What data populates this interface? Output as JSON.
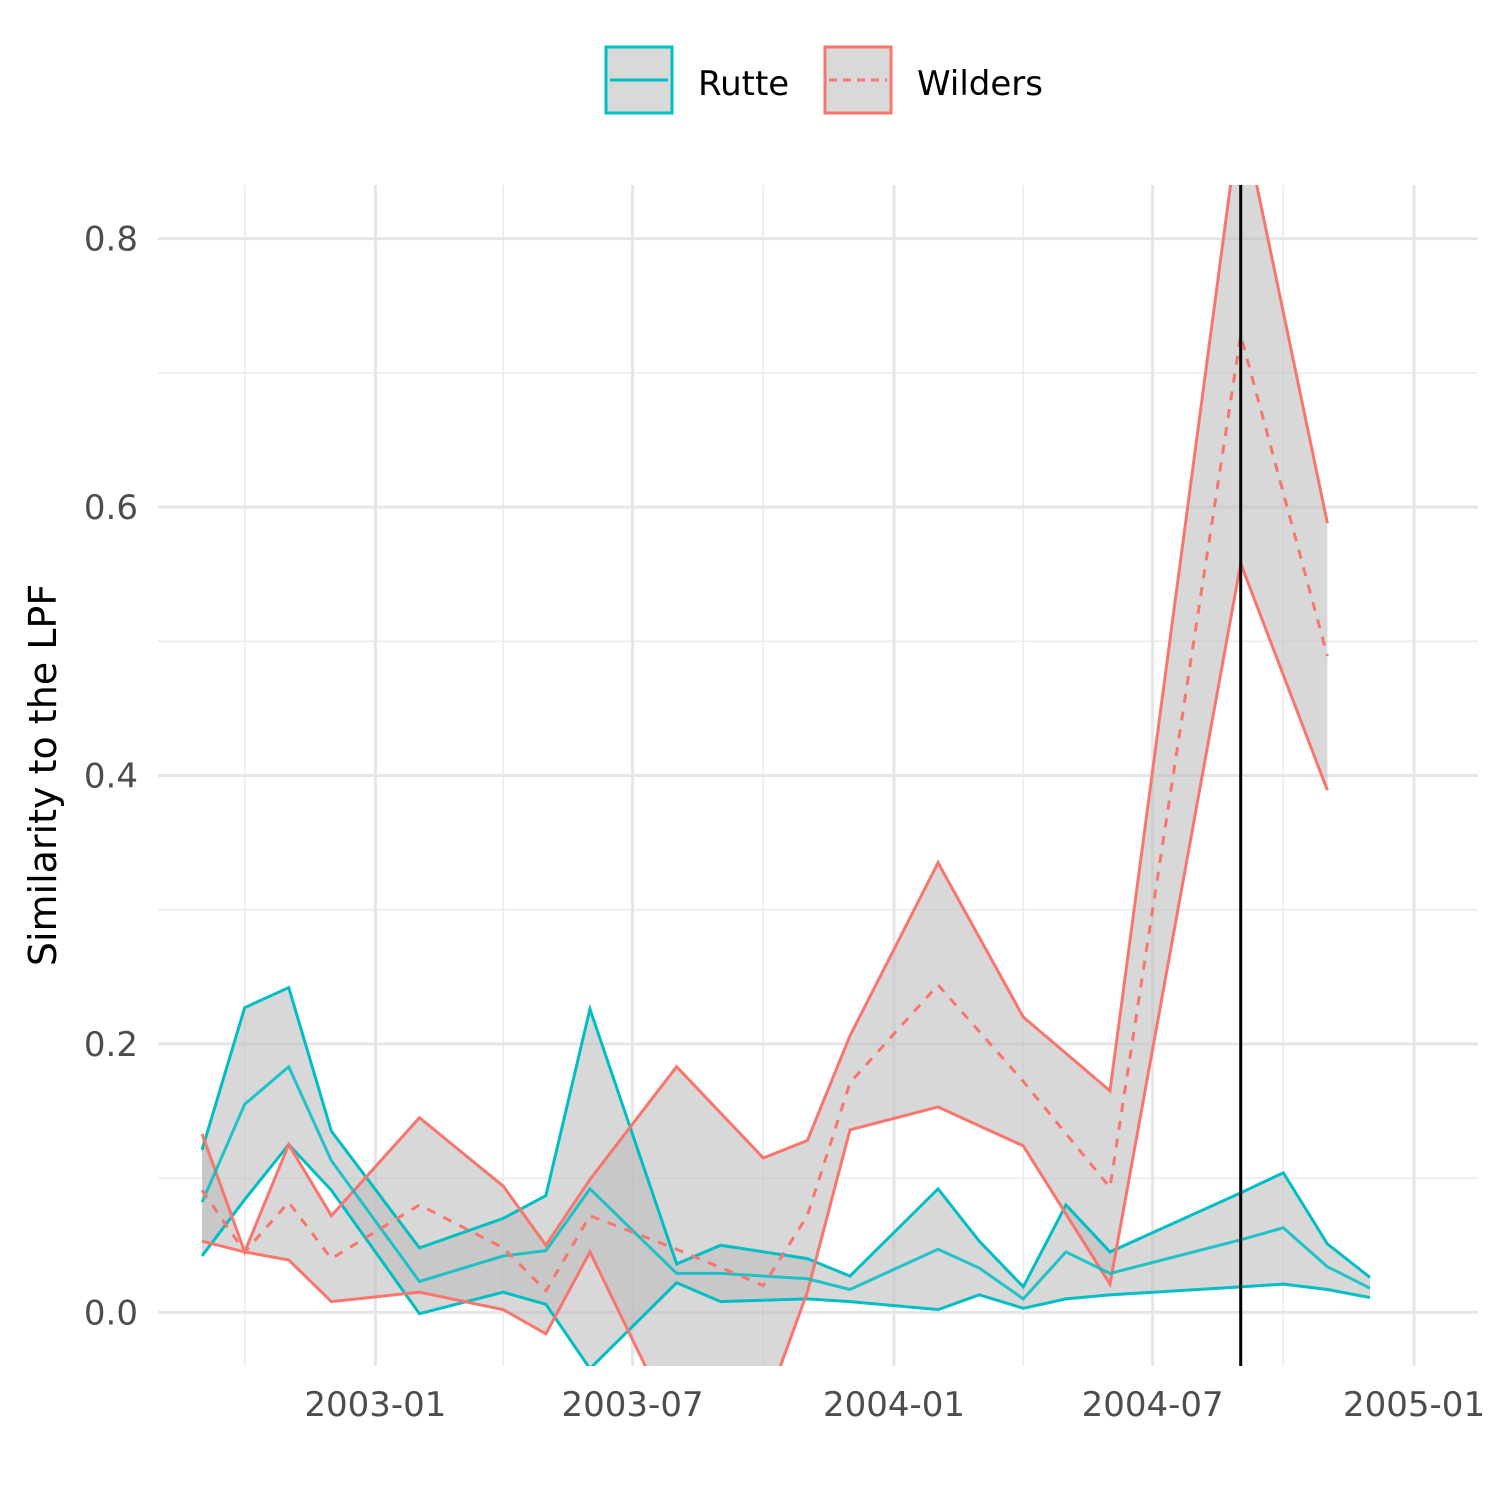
{
  "chart_data": {
    "type": "line",
    "title": "",
    "xlabel": "",
    "ylabel": "Similarity to the LPF",
    "x_tick_labels": [
      "2003-01",
      "2003-07",
      "2004-01",
      "2004-07",
      "2005-01"
    ],
    "y_tick_labels": [
      "0.0",
      "0.2",
      "0.4",
      "0.6",
      "0.8"
    ],
    "x_ticks": [
      "2003-01-01",
      "2003-07-01",
      "2004-01-01",
      "2004-07-01",
      "2005-01-01"
    ],
    "x_minor_ticks": [
      "2002-10-01",
      "2003-04-01",
      "2003-10-01",
      "2004-04-01",
      "2004-10-01"
    ],
    "y_ticks": [
      0,
      0.2,
      0.4,
      0.6,
      0.8
    ],
    "y_minor_ticks": [
      0.1,
      0.3,
      0.5,
      0.7
    ],
    "xlim": [
      "2002-08-01",
      "2005-02-15"
    ],
    "ylim": [
      -0.04,
      0.84
    ],
    "grid": true,
    "legend_position": "top",
    "vline_x": "2004-09-01",
    "colors": {
      "Rutte": "#00BFC4",
      "Wilders": "#F8766D",
      "ribbon": "#BEBEBE",
      "vline": "#000000"
    },
    "series": [
      {
        "name": "Rutte",
        "linetype": "solid",
        "points": [
          {
            "x": "2002-09-01",
            "y": 0.082,
            "lo": 0.042,
            "hi": 0.121
          },
          {
            "x": "2002-10-01",
            "y": 0.155,
            "lo": 0.084,
            "hi": 0.227
          },
          {
            "x": "2002-11-01",
            "y": 0.183,
            "lo": 0.125,
            "hi": 0.242
          },
          {
            "x": "2002-12-01",
            "y": 0.113,
            "lo": 0.091,
            "hi": 0.135
          },
          {
            "x": "2003-02-01",
            "y": 0.023,
            "lo": -0.001,
            "hi": 0.048
          },
          {
            "x": "2003-04-01",
            "y": 0.042,
            "lo": 0.015,
            "hi": 0.07
          },
          {
            "x": "2003-05-01",
            "y": 0.046,
            "lo": 0.006,
            "hi": 0.087
          },
          {
            "x": "2003-06-01",
            "y": 0.092,
            "lo": -0.042,
            "hi": 0.226
          },
          {
            "x": "2003-08-01",
            "y": 0.029,
            "lo": 0.022,
            "hi": 0.036
          },
          {
            "x": "2003-09-01",
            "y": 0.029,
            "lo": 0.008,
            "hi": 0.05
          },
          {
            "x": "2003-11-01",
            "y": 0.025,
            "lo": 0.01,
            "hi": 0.04
          },
          {
            "x": "2003-12-01",
            "y": 0.017,
            "lo": 0.008,
            "hi": 0.027
          },
          {
            "x": "2004-02-01",
            "y": 0.047,
            "lo": 0.002,
            "hi": 0.092
          },
          {
            "x": "2004-03-01",
            "y": 0.033,
            "lo": 0.013,
            "hi": 0.053
          },
          {
            "x": "2004-04-01",
            "y": 0.01,
            "lo": 0.003,
            "hi": 0.019
          },
          {
            "x": "2004-05-01",
            "y": 0.045,
            "lo": 0.01,
            "hi": 0.08
          },
          {
            "x": "2004-06-01",
            "y": 0.029,
            "lo": 0.013,
            "hi": 0.045
          },
          {
            "x": "2004-09-01",
            "y": 0.054,
            "lo": 0.019,
            "hi": 0.089
          },
          {
            "x": "2004-10-01",
            "y": 0.063,
            "lo": 0.021,
            "hi": 0.104
          },
          {
            "x": "2004-11-01",
            "y": 0.034,
            "lo": 0.017,
            "hi": 0.051
          },
          {
            "x": "2004-12-01",
            "y": 0.018,
            "lo": 0.011,
            "hi": 0.026
          }
        ]
      },
      {
        "name": "Wilders",
        "linetype": "dashed",
        "points": [
          {
            "x": "2002-09-01",
            "y": 0.091,
            "lo": 0.053,
            "hi": 0.133
          },
          {
            "x": "2002-10-01",
            "y": 0.045,
            "lo": 0.045,
            "hi": 0.045
          },
          {
            "x": "2002-11-01",
            "y": 0.082,
            "lo": 0.039,
            "hi": 0.125
          },
          {
            "x": "2002-12-01",
            "y": 0.04,
            "lo": 0.008,
            "hi": 0.072
          },
          {
            "x": "2003-02-01",
            "y": 0.08,
            "lo": 0.015,
            "hi": 0.145
          },
          {
            "x": "2003-04-01",
            "y": 0.048,
            "lo": 0.002,
            "hi": 0.094
          },
          {
            "x": "2003-05-01",
            "y": 0.016,
            "lo": -0.016,
            "hi": 0.05
          },
          {
            "x": "2003-06-01",
            "y": 0.072,
            "lo": 0.045,
            "hi": 0.099
          },
          {
            "x": "2003-08-01",
            "y": 0.047,
            "lo": -0.088,
            "hi": 0.183
          },
          {
            "x": "2003-10-01",
            "y": 0.02,
            "lo": -0.075,
            "hi": 0.115
          },
          {
            "x": "2003-11-01",
            "y": 0.072,
            "lo": 0.015,
            "hi": 0.128
          },
          {
            "x": "2003-12-01",
            "y": 0.171,
            "lo": 0.136,
            "hi": 0.206
          },
          {
            "x": "2004-02-01",
            "y": 0.244,
            "lo": 0.153,
            "hi": 0.335
          },
          {
            "x": "2004-04-01",
            "y": 0.172,
            "lo": 0.124,
            "hi": 0.22
          },
          {
            "x": "2004-06-01",
            "y": 0.093,
            "lo": 0.021,
            "hi": 0.165
          },
          {
            "x": "2004-09-01",
            "y": 0.728,
            "lo": 0.558,
            "hi": 0.897
          },
          {
            "x": "2004-11-01",
            "y": 0.489,
            "lo": 0.389,
            "hi": 0.588
          }
        ]
      }
    ]
  }
}
